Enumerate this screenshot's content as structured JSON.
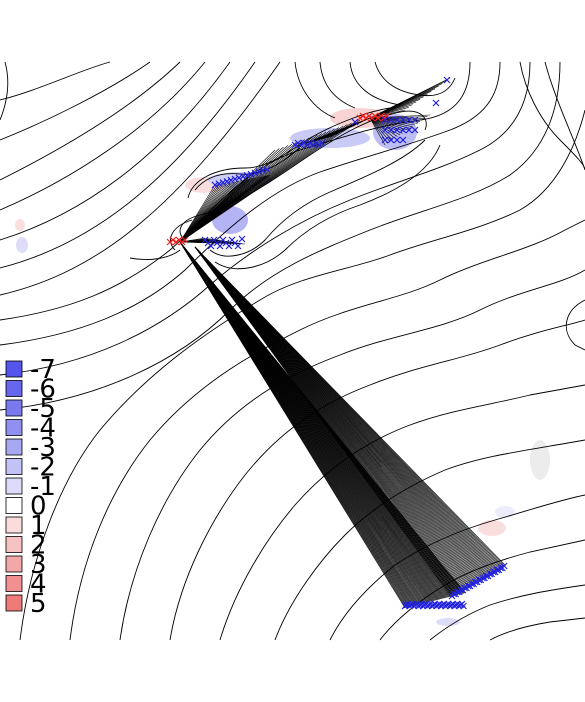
{
  "legend": {
    "entries": [
      {
        "label": "-7",
        "color": "#5555ee"
      },
      {
        "label": "-6",
        "color": "#6666ee"
      },
      {
        "label": "-5",
        "color": "#7a7aee"
      },
      {
        "label": "-4",
        "color": "#9090f0"
      },
      {
        "label": "-3",
        "color": "#a8a8f2"
      },
      {
        "label": "-2",
        "color": "#c2c2f6"
      },
      {
        "label": "-1",
        "color": "#dcdcfa"
      },
      {
        "label": "0",
        "color": "#ffffff"
      },
      {
        "label": "1",
        "color": "#fadcdc"
      },
      {
        "label": "2",
        "color": "#f6c2c2"
      },
      {
        "label": "3",
        "color": "#f2a8a8"
      },
      {
        "label": "4",
        "color": "#f09090"
      },
      {
        "label": "5",
        "color": "#ee7a7a"
      }
    ]
  },
  "colors": {
    "negative_marker": "#2222dd",
    "positive_marker": "#ee2222",
    "contour": "#000000",
    "shade_negative": "#7777ee",
    "shade_positive": "#ee8888"
  }
}
